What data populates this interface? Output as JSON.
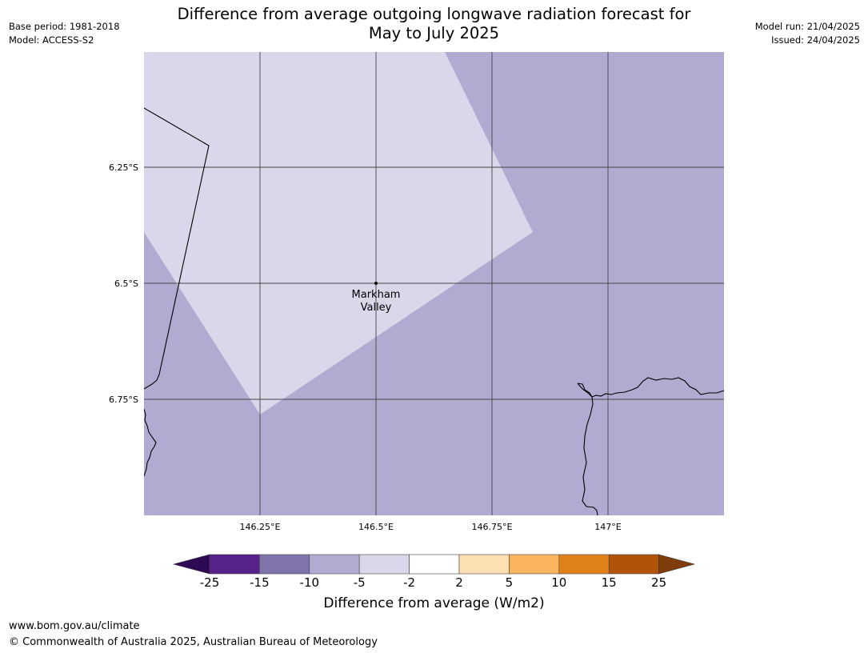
{
  "header": {
    "title_line1": "Difference from average outgoing longwave radiation forecast for",
    "title_line2": "May to July 2025",
    "base_period": "Base period: 1981-2018",
    "model": "Model: ACCESS-S2",
    "model_run": "Model run: 21/04/2025",
    "issued": "Issued: 24/04/2025"
  },
  "map": {
    "lat_labels": [
      "6.25°S",
      "6.5°S",
      "6.75°S"
    ],
    "lon_labels": [
      "146.25°E",
      "146.5°E",
      "146.75°E",
      "147°E"
    ],
    "location": {
      "name_line1": "Markham",
      "name_line2": "Valley"
    },
    "colors": {
      "background_fill": "#b1abd2",
      "anomaly_region_fill": "#d8d8ea",
      "gridline": "#444444",
      "coastline": "#000000"
    }
  },
  "colorbar": {
    "ticks": [
      "-25",
      "-15",
      "-10",
      "-5",
      "-2",
      "2",
      "5",
      "10",
      "15",
      "25"
    ],
    "colors": [
      "#2d0a53",
      "#57238a",
      "#8173ab",
      "#b1abd2",
      "#d8d8ea",
      "#ffffff",
      "#fddfb4",
      "#fbb55f",
      "#e0811a",
      "#b25308",
      "#7f3c0c"
    ],
    "label": "Difference from average (W/m2)"
  },
  "footer": {
    "url": "www.bom.gov.au/climate",
    "copyright": "© Commonwealth of Australia 2025, Australian Bureau of Meteorology"
  }
}
